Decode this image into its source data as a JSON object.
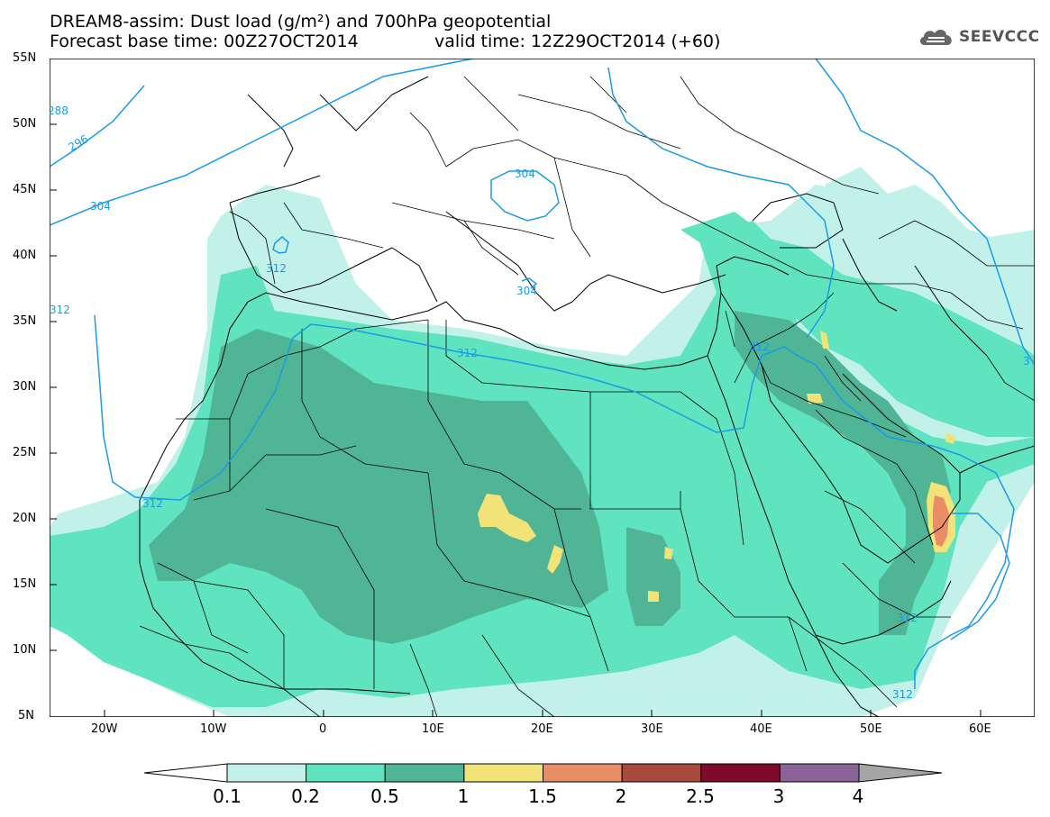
{
  "header": {
    "title_line1": "DREAM8-assim: Dust load (g/m²) and 700hPa geopotential",
    "base_time": "Forecast base time: 00Z27OCT2014",
    "valid_time": "valid time: 12Z29OCT2014 (+60)",
    "logo_text": "SEEVCCC"
  },
  "map": {
    "lon_ticks": [
      "20W",
      "10W",
      "0",
      "10E",
      "20E",
      "30E",
      "40E",
      "50E",
      "60E"
    ],
    "lat_ticks": [
      "55N",
      "50N",
      "45N",
      "40N",
      "35N",
      "30N",
      "25N",
      "20N",
      "15N",
      "10N",
      "5N"
    ],
    "lon_range": [
      -25,
      65
    ],
    "lat_range": [
      5,
      55
    ],
    "contour_labels": [
      "288",
      "296",
      "304",
      "312",
      "304",
      "312",
      "304",
      "312",
      "312",
      "312",
      "312",
      "312",
      "312",
      "3"
    ],
    "contour_color": "#1a9be6",
    "border_color": "#000000"
  },
  "legend": {
    "values": [
      "0.1",
      "0.2",
      "0.5",
      "1",
      "1.5",
      "2",
      "2.5",
      "3",
      "4"
    ],
    "colors": [
      "#ffffff",
      "#c1f1e8",
      "#5fe4bf",
      "#4fb594",
      "#f1e378",
      "#e98d66",
      "#a94a3e",
      "#7e0a2c",
      "#8a6499",
      "#a5a5a5"
    ]
  }
}
